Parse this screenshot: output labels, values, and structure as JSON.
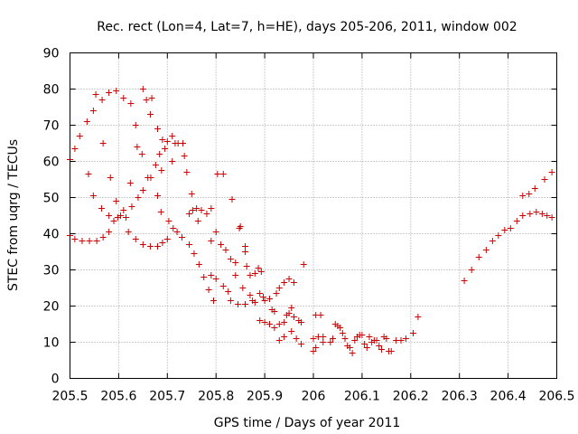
{
  "chart_data": {
    "type": "scatter",
    "title": "Rec. rect (Lon=4, Lat=7, h=HE), days 205-206, 2011, window 002",
    "xlabel": "GPS time / Days of year 2011",
    "ylabel": "STEC from uqrg / TECUs",
    "xlim": [
      205.5,
      206.5
    ],
    "ylim": [
      0,
      90
    ],
    "xticks": [
      205.5,
      205.6,
      205.7,
      205.8,
      205.9,
      206,
      206.1,
      206.2,
      206.3,
      206.4,
      206.5
    ],
    "xtick_labels": [
      "205.5",
      "205.6",
      "205.7",
      "205.8",
      "205.9",
      "206",
      "206.1",
      "206.2",
      "206.3",
      "206.4",
      "206.5"
    ],
    "yticks": [
      0,
      10,
      20,
      30,
      40,
      50,
      60,
      70,
      80,
      90
    ],
    "ytick_labels": [
      "0",
      "10",
      "20",
      "30",
      "40",
      "50",
      "60",
      "70",
      "80",
      "90"
    ],
    "grid": true,
    "marker": "plus",
    "color": "#cc0000",
    "series": [
      {
        "name": "",
        "points": [
          [
            205.5,
            60.5
          ],
          [
            205.51,
            63.5
          ],
          [
            205.52,
            67
          ],
          [
            205.535,
            71
          ],
          [
            205.548,
            74
          ],
          [
            205.553,
            78.5
          ],
          [
            205.566,
            77
          ],
          [
            205.58,
            79
          ],
          [
            205.595,
            79.5
          ],
          [
            205.61,
            77.5
          ],
          [
            205.625,
            76
          ],
          [
            205.635,
            70
          ],
          [
            205.65,
            80
          ],
          [
            205.657,
            77
          ],
          [
            205.668,
            77.5
          ],
          [
            205.665,
            73
          ],
          [
            205.68,
            69
          ],
          [
            205.538,
            56.5
          ],
          [
            205.548,
            50.5
          ],
          [
            205.568,
            65
          ],
          [
            205.583,
            55.5
          ],
          [
            205.565,
            47
          ],
          [
            205.58,
            45
          ],
          [
            205.59,
            43.5
          ],
          [
            205.595,
            49
          ],
          [
            205.604,
            45
          ],
          [
            205.615,
            44.5
          ],
          [
            205.61,
            46.5
          ],
          [
            205.627,
            47.5
          ],
          [
            205.638,
            64
          ],
          [
            205.648,
            62
          ],
          [
            205.66,
            55.5
          ],
          [
            205.624,
            54
          ],
          [
            205.64,
            50
          ],
          [
            205.65,
            52
          ],
          [
            205.666,
            55.5
          ],
          [
            205.676,
            59
          ],
          [
            205.684,
            62
          ],
          [
            205.688,
            57.5
          ],
          [
            205.68,
            50.5
          ],
          [
            205.687,
            46
          ],
          [
            205.695,
            63.5
          ],
          [
            205.7,
            65.5
          ],
          [
            205.71,
            67
          ],
          [
            205.716,
            65
          ],
          [
            205.722,
            65
          ],
          [
            205.732,
            65
          ],
          [
            205.735,
            61.5
          ],
          [
            205.69,
            66
          ],
          [
            205.71,
            60
          ],
          [
            205.74,
            57
          ],
          [
            205.75,
            51
          ],
          [
            205.76,
            47
          ],
          [
            205.77,
            46.5
          ],
          [
            205.79,
            47
          ],
          [
            205.781,
            45.5
          ],
          [
            205.803,
            56.5
          ],
          [
            205.815,
            56.5
          ],
          [
            205.833,
            49.5
          ],
          [
            205.5,
            39.5
          ],
          [
            205.51,
            38.5
          ],
          [
            205.525,
            38
          ],
          [
            205.54,
            38
          ],
          [
            205.555,
            38
          ],
          [
            205.568,
            39
          ],
          [
            205.58,
            40.5
          ],
          [
            205.598,
            44.5
          ],
          [
            205.62,
            40.5
          ],
          [
            205.635,
            38.5
          ],
          [
            205.65,
            37
          ],
          [
            205.665,
            36.5
          ],
          [
            205.68,
            36.5
          ],
          [
            205.69,
            37.5
          ],
          [
            205.7,
            38.5
          ],
          [
            205.703,
            43.5
          ],
          [
            205.712,
            41.5
          ],
          [
            205.72,
            40.5
          ],
          [
            205.73,
            39
          ],
          [
            205.745,
            37
          ],
          [
            205.755,
            34.5
          ],
          [
            205.765,
            31.5
          ],
          [
            205.775,
            28
          ],
          [
            205.785,
            24.5
          ],
          [
            205.795,
            21.5
          ],
          [
            205.745,
            45.5
          ],
          [
            205.752,
            46.5
          ],
          [
            205.763,
            43.5
          ],
          [
            205.79,
            38
          ],
          [
            205.8,
            40.5
          ],
          [
            205.81,
            37
          ],
          [
            205.82,
            35.5
          ],
          [
            205.83,
            33
          ],
          [
            205.84,
            32
          ],
          [
            205.79,
            28.5
          ],
          [
            205.8,
            27.5
          ],
          [
            205.815,
            25.5
          ],
          [
            205.825,
            24
          ],
          [
            205.83,
            21.5
          ],
          [
            205.845,
            20.5
          ],
          [
            205.848,
            41.5
          ],
          [
            205.85,
            42
          ],
          [
            205.86,
            36.5
          ],
          [
            205.86,
            35
          ],
          [
            205.863,
            31
          ],
          [
            205.87,
            28.5
          ],
          [
            205.88,
            29
          ],
          [
            205.887,
            30.5
          ],
          [
            205.893,
            29.5
          ],
          [
            205.84,
            28.5
          ],
          [
            205.855,
            25
          ],
          [
            205.87,
            23
          ],
          [
            205.86,
            20.5
          ],
          [
            205.875,
            21.5
          ],
          [
            205.88,
            21
          ],
          [
            205.89,
            23.5
          ],
          [
            205.897,
            22.5
          ],
          [
            205.9,
            21.5
          ],
          [
            205.91,
            22
          ],
          [
            205.915,
            19
          ],
          [
            205.92,
            18.5
          ],
          [
            205.924,
            23.5
          ],
          [
            205.93,
            25
          ],
          [
            205.94,
            26.5
          ],
          [
            205.95,
            27.5
          ],
          [
            205.96,
            26.5
          ],
          [
            205.89,
            16
          ],
          [
            205.9,
            15.5
          ],
          [
            205.91,
            15
          ],
          [
            205.92,
            14
          ],
          [
            205.93,
            15
          ],
          [
            205.94,
            15.5
          ],
          [
            205.945,
            17.5
          ],
          [
            205.95,
            18
          ],
          [
            205.955,
            19.5
          ],
          [
            205.96,
            17
          ],
          [
            205.97,
            16
          ],
          [
            205.975,
            15.5
          ],
          [
            205.98,
            31.5
          ],
          [
            205.93,
            10.5
          ],
          [
            205.94,
            11.5
          ],
          [
            205.955,
            13
          ],
          [
            205.965,
            11
          ],
          [
            205.975,
            9.5
          ],
          [
            206.005,
            17.5
          ],
          [
            206.015,
            17.5
          ],
          [
            206.0,
            11
          ],
          [
            206.01,
            11.5
          ],
          [
            206.005,
            8.5
          ],
          [
            206.0,
            7.5
          ],
          [
            206.02,
            11.5
          ],
          [
            206.02,
            10
          ],
          [
            206.035,
            10
          ],
          [
            206.04,
            11
          ],
          [
            206.045,
            15
          ],
          [
            206.05,
            14.5
          ],
          [
            206.055,
            14
          ],
          [
            206.06,
            12.5
          ],
          [
            206.065,
            11
          ],
          [
            206.07,
            9
          ],
          [
            206.075,
            8.5
          ],
          [
            206.08,
            7
          ],
          [
            206.085,
            10.5
          ],
          [
            206.09,
            11.5
          ],
          [
            206.095,
            12
          ],
          [
            206.1,
            12
          ],
          [
            206.105,
            9.5
          ],
          [
            206.11,
            8.5
          ],
          [
            206.115,
            11.5
          ],
          [
            206.12,
            10
          ],
          [
            206.125,
            10.5
          ],
          [
            206.13,
            10.5
          ],
          [
            206.135,
            9
          ],
          [
            206.14,
            8
          ],
          [
            206.145,
            11.5
          ],
          [
            206.15,
            11
          ],
          [
            206.155,
            7.5
          ],
          [
            206.16,
            7.5
          ],
          [
            206.17,
            10.5
          ],
          [
            206.18,
            10.5
          ],
          [
            206.19,
            11
          ],
          [
            206.205,
            12.5
          ],
          [
            206.215,
            17
          ],
          [
            206.31,
            27
          ],
          [
            206.325,
            30
          ],
          [
            206.34,
            33.5
          ],
          [
            206.355,
            35.5
          ],
          [
            206.368,
            38
          ],
          [
            206.38,
            39.5
          ],
          [
            206.393,
            41
          ],
          [
            206.405,
            41.5
          ],
          [
            206.418,
            43.5
          ],
          [
            206.43,
            45
          ],
          [
            206.445,
            45.5
          ],
          [
            206.458,
            46
          ],
          [
            206.47,
            45.5
          ],
          [
            206.48,
            45
          ],
          [
            206.49,
            44.5
          ],
          [
            206.43,
            50.5
          ],
          [
            206.443,
            51
          ],
          [
            206.455,
            52.5
          ],
          [
            206.475,
            55
          ],
          [
            206.49,
            57
          ]
        ]
      }
    ]
  }
}
